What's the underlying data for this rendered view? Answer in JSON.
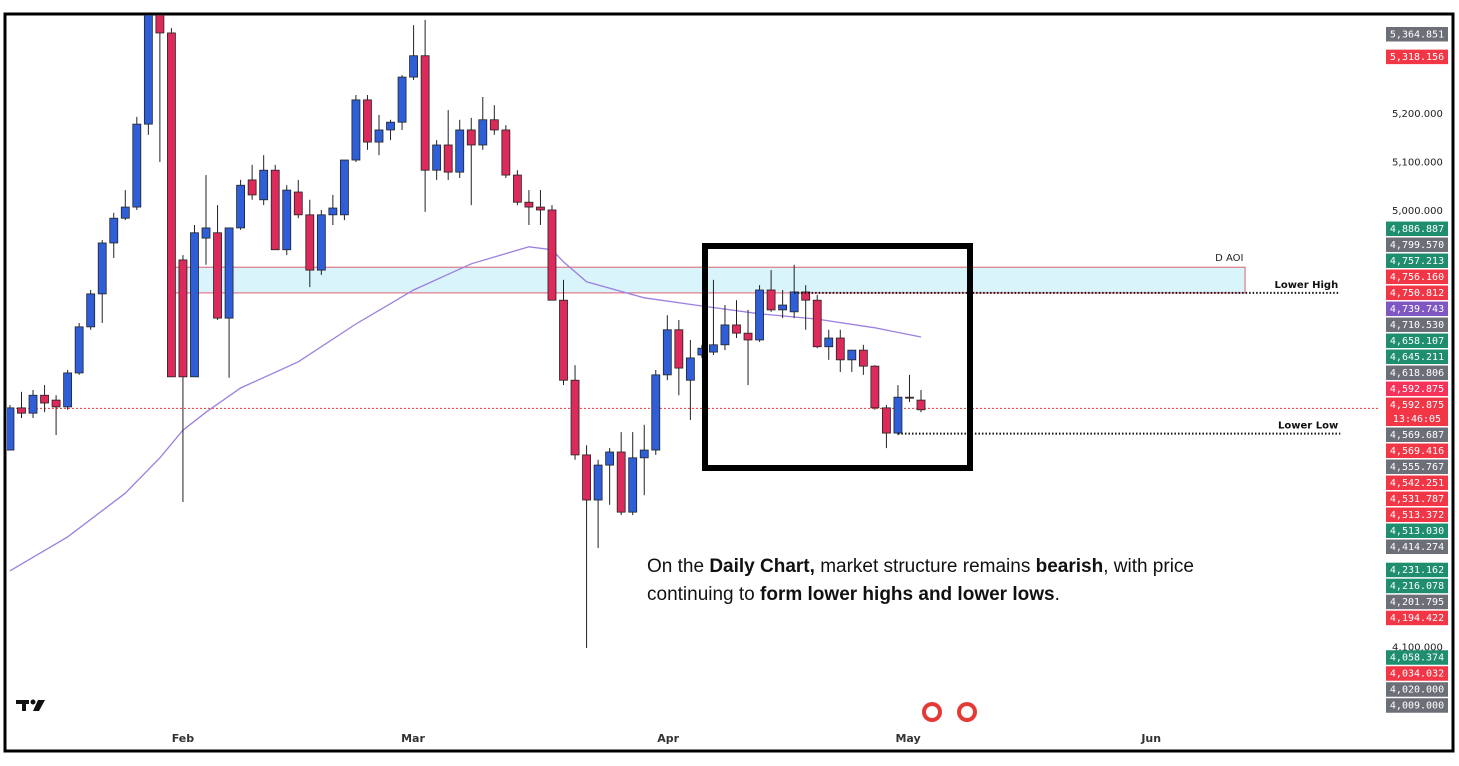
{
  "chart_data": {
    "type": "candlestick",
    "open": [
      4507,
      4594,
      4583,
      4620,
      4610,
      4596,
      4666,
      4761,
      4829,
      4934,
      4985,
      5008,
      5179,
      5404,
      5367,
      4899,
      4658,
      4944,
      4955,
      4779,
      4965,
      5064,
      5023,
      5084,
      4920,
      5039,
      4992,
      4878,
      4992,
      4992,
      5105,
      5229,
      5142,
      5167,
      5183,
      5276,
      5320,
      5084,
      5136,
      5080,
      5167,
      5136,
      5188,
      5167,
      5074,
      5018,
      5008,
      5002,
      4816,
      4651,
      4497,
      4404,
      4476,
      4503,
      4379,
      4491,
      4507,
      4662,
      4755,
      4651,
      4703,
      4709,
      4724,
      4765,
      4748,
      4734,
      4837,
      4796,
      4792,
      4833,
      4816,
      4720,
      4738,
      4693,
      4713,
      4680,
      4594,
      4542,
      4616,
      4610
    ],
    "high": [
      4600,
      4627,
      4631,
      4641,
      4620,
      4672,
      4769,
      4837,
      4940,
      4996,
      5043,
      5194,
      5410,
      5410,
      5377,
      4909,
      4971,
      5074,
      5012,
      4965,
      5064,
      5095,
      5115,
      5095,
      5053,
      5064,
      5023,
      5002,
      5033,
      5105,
      5239,
      5239,
      5198,
      5188,
      5280,
      5383,
      5394,
      5146,
      5208,
      5188,
      5192,
      5235,
      5218,
      5177,
      5084,
      5043,
      5043,
      5012,
      4858,
      4682,
      4517,
      4487,
      4511,
      4544,
      4544,
      4559,
      4672,
      4785,
      4775,
      4734,
      4724,
      4858,
      4806,
      4816,
      4796,
      4847,
      4878,
      4837,
      4889,
      4847,
      4827,
      4755,
      4755,
      4713,
      4724,
      4682,
      4600,
      4641,
      4662,
      4631
    ],
    "low": [
      4507,
      4573,
      4573,
      4585,
      4538,
      4590,
      4662,
      4755,
      4769,
      4903,
      4981,
      5002,
      5157,
      5101,
      4658,
      4400,
      4658,
      4889,
      4775,
      4656,
      4961,
      5023,
      5012,
      4920,
      4909,
      4985,
      4843,
      4868,
      4971,
      4981,
      5101,
      5126,
      5115,
      5146,
      5167,
      5270,
      4998,
      5064,
      5064,
      5068,
      5012,
      5126,
      5157,
      5068,
      5012,
      4971,
      4971,
      4816,
      4641,
      4487,
      4099,
      4305,
      4394,
      4373,
      4373,
      4414,
      4497,
      4651,
      4620,
      4569,
      4697,
      4703,
      4713,
      4738,
      4641,
      4730,
      4792,
      4779,
      4779,
      4755,
      4717,
      4693,
      4668,
      4668,
      4662,
      4590,
      4511,
      4538,
      4606,
      4585
    ],
    "close": [
      4594,
      4583,
      4620,
      4604,
      4596,
      4666,
      4761,
      4829,
      4934,
      4985,
      5008,
      5179,
      5404,
      5367,
      4658,
      4658,
      4955,
      4965,
      4779,
      4965,
      5053,
      5033,
      5084,
      4920,
      5043,
      4992,
      4878,
      4992,
      5006,
      5105,
      5229,
      5142,
      5167,
      5183,
      5276,
      5320,
      5084,
      5136,
      5080,
      5167,
      5136,
      5188,
      5167,
      5074,
      5018,
      5008,
      5002,
      4816,
      4651,
      4497,
      4404,
      4476,
      4503,
      4379,
      4491,
      4507,
      4662,
      4755,
      4676,
      4697,
      4717,
      4724,
      4765,
      4748,
      4734,
      4837,
      4796,
      4806,
      4833,
      4816,
      4720,
      4738,
      4693,
      4713,
      4680,
      4594,
      4542,
      4616,
      4614,
      4590
    ],
    "up_color": "#2f5fd8",
    "down_color": "#dc2a5b",
    "ma": {
      "color": "#9c7fe0",
      "x": [
        0,
        5,
        10,
        13,
        15,
        17,
        20,
        25,
        30,
        35,
        40,
        45,
        47,
        48,
        50,
        55,
        60,
        65,
        70,
        75,
        79
      ],
      "values": [
        4258,
        4328,
        4418,
        4491,
        4548,
        4585,
        4635,
        4689,
        4767,
        4837,
        4891,
        4926,
        4920,
        4895,
        4854,
        4821,
        4804,
        4788,
        4777,
        4759,
        4740
      ]
    },
    "xlim": [
      -0.17,
      118.8
    ],
    "xticks": [
      {
        "value": 15,
        "label": "Feb"
      },
      {
        "value": 34.95,
        "label": "Mar"
      },
      {
        "value": 57.07,
        "label": "Apr"
      },
      {
        "value": 77.88,
        "label": "May"
      },
      {
        "value": 98.96,
        "label": "Jun"
      }
    ],
    "ylim": [
      3936,
      5404
    ],
    "yticks": [
      {
        "value": 5200,
        "label": "5,200.000"
      },
      {
        "value": 5100,
        "label": "5,100.000"
      },
      {
        "value": 5000,
        "label": "5,000.000"
      },
      {
        "value": 4100,
        "label": "4,100.000"
      }
    ],
    "price_line": 4592.875,
    "price_line_color": "#e53935",
    "zone": {
      "label": "D AOI",
      "x": [
        14.05,
        107.1
      ],
      "y": [
        4831,
        4884
      ],
      "color": "#daf4fb",
      "border": "#e06070"
    },
    "levels": [
      {
        "label": "Lower High",
        "x": [
          68,
          115.35
        ],
        "value": 4831
      },
      {
        "label": "Lower Low",
        "x": [
          77,
          115.35
        ],
        "value": 4541
      }
    ],
    "tags": [
      {
        "value": 5364.851,
        "label": "5,364.851",
        "color": "#6d6f78"
      },
      {
        "value": 5318.156,
        "label": "5,318.156",
        "color": "#f23645"
      },
      {
        "value": 4886.887,
        "label": "4,886.887",
        "color": "#1e8e6e"
      },
      {
        "value": 4799.57,
        "label": "4,799.570",
        "color": "#6d6f78"
      },
      {
        "value": 4757.213,
        "label": "4,757.213",
        "color": "#1e8e6e"
      },
      {
        "value": 4756.16,
        "label": "4,756.160",
        "color": "#f23645"
      },
      {
        "value": 4750.812,
        "label": "4,750.812",
        "color": "#f23645"
      },
      {
        "value": 4739.743,
        "label": "4,739.743",
        "color": "#7e57c2"
      },
      {
        "value": 4710.53,
        "label": "4,710.530",
        "color": "#6d6f78"
      },
      {
        "value": 4658.107,
        "label": "4,658.107",
        "color": "#1e8e6e"
      },
      {
        "value": 4645.211,
        "label": "4,645.211",
        "color": "#1e8e6e"
      },
      {
        "value": 4618.806,
        "label": "4,618.806",
        "color": "#6d6f78"
      },
      {
        "value": 4592.875,
        "label": "4,592.875",
        "color": "#f7325a"
      },
      {
        "value": 4592.875,
        "label": "4,592.875",
        "color": "#f23645",
        "countdown": "13:46:05"
      },
      {
        "value": 4569.687,
        "label": "4,569.687",
        "color": "#6d6f78"
      },
      {
        "value": 4569.416,
        "label": "4,569.416",
        "color": "#f23645"
      },
      {
        "value": 4555.767,
        "label": "4,555.767",
        "color": "#6d6f78"
      },
      {
        "value": 4542.251,
        "label": "4,542.251",
        "color": "#f23645"
      },
      {
        "value": 4531.787,
        "label": "4,531.787",
        "color": "#f23645"
      },
      {
        "value": 4513.372,
        "label": "4,513.372",
        "color": "#f23645"
      },
      {
        "value": 4513.03,
        "label": "4,513.030",
        "color": "#1e8e6e"
      },
      {
        "value": 4414.274,
        "label": "4,414.274",
        "color": "#6d6f78"
      },
      {
        "value": 4231.162,
        "label": "4,231.162",
        "color": "#1e8e6e"
      },
      {
        "value": 4216.078,
        "label": "4,216.078",
        "color": "#1e8e6e"
      },
      {
        "value": 4201.795,
        "label": "4,201.795",
        "color": "#6d6f78"
      },
      {
        "value": 4194.422,
        "label": "4,194.422",
        "color": "#f23645"
      },
      {
        "value": 4058.374,
        "label": "4,058.374",
        "color": "#1e8e6e"
      },
      {
        "value": 4034.032,
        "label": "4,034.032",
        "color": "#f23645"
      },
      {
        "value": 4020.0,
        "label": "4,020.000",
        "color": "#6d6f78"
      },
      {
        "value": 4009.0,
        "label": "4,009.000",
        "color": "#6d6f78"
      }
    ],
    "annotation": [
      [
        {
          "text": "On the ",
          "bold": false
        },
        {
          "text": "Daily Chart,",
          "bold": true
        },
        {
          "text": " market structure remains ",
          "bold": false
        },
        {
          "text": "bearish",
          "bold": true
        },
        {
          "text": ", with price",
          "bold": false
        }
      ],
      [
        {
          "text": "continuing to ",
          "bold": false
        },
        {
          "text": "form lower highs and lower lows",
          "bold": true
        },
        {
          "text": ".",
          "bold": false
        }
      ]
    ]
  }
}
